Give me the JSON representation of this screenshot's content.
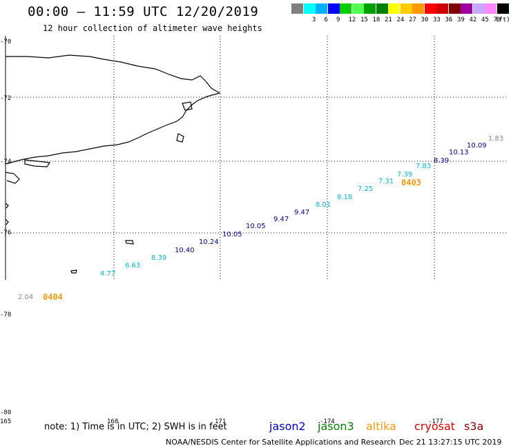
{
  "title": "00:00 – 11:59 UTC 12/20/2019",
  "subtitle": "12 hour collection of altimeter wave heights",
  "legend": {
    "unit": "(ft)",
    "bins": [
      {
        "label": "",
        "color": "#808080"
      },
      {
        "label": "3",
        "color": "#00ffff"
      },
      {
        "label": "6",
        "color": "#00b0ff"
      },
      {
        "label": "9",
        "color": "#0000ff"
      },
      {
        "label": "12",
        "color": "#00d000"
      },
      {
        "label": "15",
        "color": "#50ff50"
      },
      {
        "label": "18",
        "color": "#00a000"
      },
      {
        "label": "21",
        "color": "#008000"
      },
      {
        "label": "24",
        "color": "#ffff00"
      },
      {
        "label": "27",
        "color": "#ffcc00"
      },
      {
        "label": "30",
        "color": "#ff9900"
      },
      {
        "label": "33",
        "color": "#ff0000"
      },
      {
        "label": "36",
        "color": "#d00000"
      },
      {
        "label": "39",
        "color": "#800000"
      },
      {
        "label": "42",
        "color": "#a000a0"
      },
      {
        "label": "45",
        "color": "#c8a8ff"
      },
      {
        "label": "70",
        "color": "#ff88ff"
      },
      {
        "label": "",
        "color": "#000000"
      }
    ]
  },
  "lat_labels": [
    "-70",
    "-72",
    "-74",
    "-76",
    "-78",
    "-80"
  ],
  "lon_labels": [
    "165",
    "168",
    "171",
    "-174",
    "-177"
  ],
  "wave_heights": [
    {
      "v": "1.83",
      "c": "#888888"
    },
    {
      "v": "10.09",
      "c": "#00009a"
    },
    {
      "v": "10.13",
      "c": "#00009a"
    },
    {
      "v": "8.39",
      "c": "#00009a"
    },
    {
      "v": "7.83",
      "c": "#00b8d8"
    },
    {
      "v": "7.39",
      "c": "#00b8d8"
    },
    {
      "v": "7.31",
      "c": "#00b8d8"
    },
    {
      "v": "7.25",
      "c": "#00b8d8"
    },
    {
      "v": "8.18",
      "c": "#00b8d8"
    },
    {
      "v": "8.01",
      "c": "#00b8d8"
    },
    {
      "v": "9.47",
      "c": "#00009a"
    },
    {
      "v": "9.47",
      "c": "#00009a"
    },
    {
      "v": "10.05",
      "c": "#00009a"
    },
    {
      "v": "10.05",
      "c": "#00009a"
    },
    {
      "v": "10.24",
      "c": "#00009a"
    },
    {
      "v": "10.40",
      "c": "#00009a"
    },
    {
      "v": "8.39",
      "c": "#00b8d8"
    },
    {
      "v": "6.63",
      "c": "#00b8d8"
    },
    {
      "v": "4.77",
      "c": "#00b8d8"
    },
    {
      "v": "2.04",
      "c": "#888888"
    }
  ],
  "passes": [
    "0403",
    "0404"
  ],
  "note": "note:  1) Time is in UTC;  2) SWH is in feet",
  "satellites": [
    {
      "name": "jason2",
      "color": "#0000cc"
    },
    {
      "name": "jason3",
      "color": "#008000"
    },
    {
      "name": "altika",
      "color": "#f59a0c"
    },
    {
      "name": "cryosat",
      "color": "#e00000"
    },
    {
      "name": "s3a",
      "color": "#8b0000"
    }
  ],
  "credit": "NOAA/NESDIS Center for Satellite Applications and Research",
  "timestamp": "Dec 21 13:27:15 UTC 2019"
}
